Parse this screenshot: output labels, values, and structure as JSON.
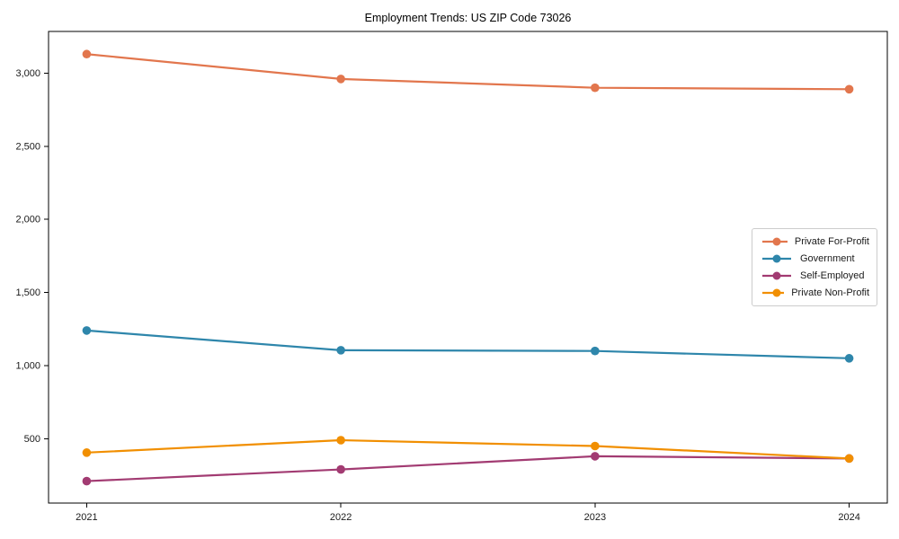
{
  "title": "Employment Trends: US ZIP Code 73026",
  "chart_data": {
    "type": "line",
    "title": "Employment Trends: US ZIP Code 73026",
    "categories": [
      2021,
      2022,
      2023,
      2024
    ],
    "x_tick_labels": [
      "2021",
      "2022",
      "2023",
      "2024"
    ],
    "series": [
      {
        "name": "Private For-Profit",
        "color": "#E2764D",
        "values": [
          3130,
          2960,
          2900,
          2890
        ]
      },
      {
        "name": "Government",
        "color": "#2E86AB",
        "values": [
          1240,
          1105,
          1100,
          1050
        ]
      },
      {
        "name": "Self-Employed",
        "color": "#A23B72",
        "values": [
          210,
          290,
          380,
          365
        ]
      },
      {
        "name": "Private Non-Profit",
        "color": "#F18F01",
        "values": [
          405,
          490,
          450,
          365
        ]
      }
    ],
    "yticks": [
      500,
      1000,
      1500,
      2000,
      2500,
      3000
    ],
    "ytick_labels": [
      "500",
      "1,000",
      "1,500",
      "2,000",
      "2,500",
      "3,000"
    ],
    "ylim": [
      60,
      3285
    ],
    "xlim": [
      2020.85,
      2024.15
    ],
    "grid": false,
    "legend_position": "center-right",
    "xlabel": "",
    "ylabel": ""
  }
}
